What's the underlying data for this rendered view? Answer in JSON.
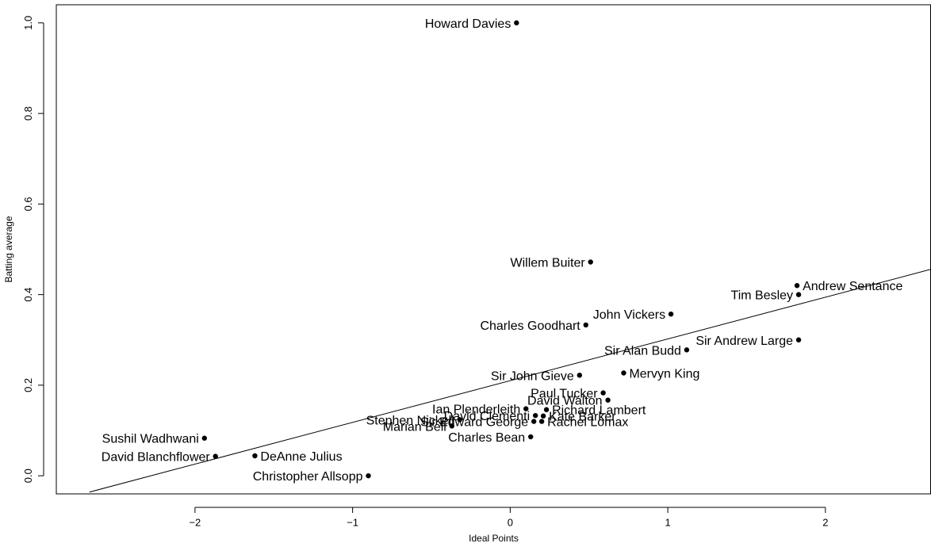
{
  "chart_data": {
    "type": "scatter",
    "title": "",
    "xlabel": "Ideal Points",
    "ylabel": "Batting average",
    "xlim": [
      -2.88,
      2.67
    ],
    "ylim": [
      -0.04,
      1.04
    ],
    "xticks": [
      -2,
      -1,
      0,
      1,
      2
    ],
    "yticks": [
      0.0,
      0.2,
      0.4,
      0.6,
      0.8,
      1.0
    ],
    "xtick_labels": [
      "−2",
      "−1",
      "0",
      "1",
      "2"
    ],
    "ytick_labels": [
      "0.0",
      "0.2",
      "0.4",
      "0.6",
      "0.8",
      "1.0"
    ],
    "grid": false,
    "legend": "none",
    "trend_line": {
      "x": [
        -2.67,
        2.67
      ],
      "y": [
        -0.036,
        0.456
      ]
    },
    "points": [
      {
        "label": "Howard Davies",
        "x": 0.04,
        "y": 1.0,
        "side": "left"
      },
      {
        "label": "Willem Buiter",
        "x": 0.51,
        "y": 0.472,
        "side": "left"
      },
      {
        "label": "Andrew Sentance",
        "x": 1.82,
        "y": 0.42,
        "side": "right"
      },
      {
        "label": "Tim Besley",
        "x": 1.83,
        "y": 0.4,
        "side": "left"
      },
      {
        "label": "John Vickers",
        "x": 1.02,
        "y": 0.357,
        "side": "left"
      },
      {
        "label": "Charles Goodhart",
        "x": 0.48,
        "y": 0.333,
        "side": "left"
      },
      {
        "label": "Sir Andrew Large",
        "x": 1.83,
        "y": 0.3,
        "side": "left"
      },
      {
        "label": "Sir Alan Budd",
        "x": 1.12,
        "y": 0.278,
        "side": "left"
      },
      {
        "label": "Sir John Gieve",
        "x": 0.44,
        "y": 0.222,
        "side": "left"
      },
      {
        "label": "Mervyn King",
        "x": 0.72,
        "y": 0.227,
        "side": "right"
      },
      {
        "label": "Paul Tucker",
        "x": 0.59,
        "y": 0.183,
        "side": "left"
      },
      {
        "label": "David Walton",
        "x": 0.62,
        "y": 0.167,
        "side": "left"
      },
      {
        "label": "Ian Plenderleith",
        "x": 0.1,
        "y": 0.148,
        "side": "left"
      },
      {
        "label": "Richard Lambert",
        "x": 0.23,
        "y": 0.146,
        "side": "right"
      },
      {
        "label": "DeAnne Julius",
        "x": -1.62,
        "y": 0.044,
        "side": "right"
      },
      {
        "label": "Christopher Allsopp",
        "x": -0.9,
        "y": 0.0,
        "side": "left"
      },
      {
        "label": "Sushil Wadhwani",
        "x": -1.94,
        "y": 0.083,
        "side": "left"
      },
      {
        "label": "David Blanchflower",
        "x": -1.87,
        "y": 0.043,
        "side": "left"
      },
      {
        "label": "Charles Bean",
        "x": 0.13,
        "y": 0.086,
        "side": "left"
      },
      {
        "label": "David Clementi",
        "x": 0.16,
        "y": 0.133,
        "side": "left"
      },
      {
        "label": "Kate Barker",
        "x": 0.21,
        "y": 0.132,
        "side": "right"
      },
      {
        "label": "Sir Edward George",
        "x": 0.15,
        "y": 0.12,
        "side": "left"
      },
      {
        "label": "Rachel Lomax",
        "x": 0.2,
        "y": 0.12,
        "side": "right"
      },
      {
        "label": "Stephen Nickell",
        "x": -0.32,
        "y": 0.124,
        "side": "left"
      },
      {
        "label": "Marian Bell",
        "x": -0.37,
        "y": 0.11,
        "side": "left"
      }
    ]
  }
}
